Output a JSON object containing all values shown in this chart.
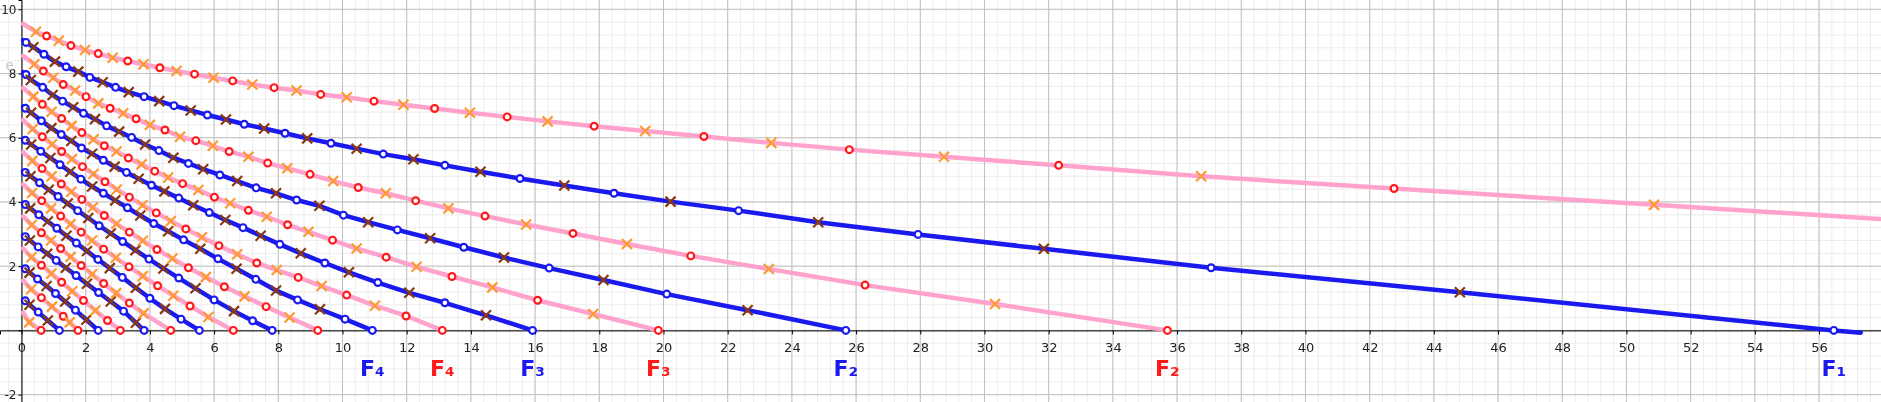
{
  "chart_data": {
    "type": "scatter",
    "xlim": [
      -0.67,
      57.93
    ],
    "ylim": [
      -2.23,
      10.29
    ],
    "xticks": [
      0,
      2,
      4,
      6,
      8,
      10,
      12,
      14,
      16,
      18,
      20,
      22,
      24,
      26,
      28,
      30,
      32,
      34,
      36,
      38,
      40,
      42,
      44,
      46,
      48,
      50,
      52,
      54,
      56
    ],
    "yticks": [
      -2,
      {
        "value": 0,
        "label": null
      },
      2,
      4,
      6,
      8,
      10
    ],
    "grid": true,
    "annotations": [
      "F₄",
      "F₄",
      "F₃",
      "F₃",
      "F₂",
      "F₂",
      "F₁",
      "e"
    ],
    "series": [
      {
        "type": "line",
        "color": "#ffa3cc",
        "x": [
          0.05,
          0.45,
          0.78,
          1.16,
          1.54,
          1.98,
          2.39,
          2.84,
          3.31,
          3.8,
          4.31,
          4.83,
          5.39,
          5.98,
          6.58,
          7.19,
          7.87,
          8.57,
          9.32,
          10.13,
          10.98,
          11.9,
          12.87,
          13.97,
          15.13,
          16.39,
          17.84,
          19.43,
          21.26,
          23.36,
          25.79,
          28.74,
          32.31,
          36.75,
          42.76,
          50.86,
          57.9
        ],
        "values": [
          9.55,
          9.3,
          9.17,
          9.02,
          8.87,
          8.73,
          8.62,
          8.49,
          8.39,
          8.29,
          8.18,
          8.08,
          7.98,
          7.87,
          7.77,
          7.66,
          7.56,
          7.47,
          7.35,
          7.26,
          7.14,
          7.03,
          6.91,
          6.78,
          6.65,
          6.51,
          6.36,
          6.21,
          6.04,
          5.84,
          5.63,
          5.41,
          5.14,
          4.8,
          4.42,
          3.91,
          3.47
        ]
      },
      {
        "type": "line",
        "color": "#1a1aee",
        "x": [
          0.05,
          0.14,
          0.37,
          0.7,
          1.04,
          1.39,
          1.77,
          2.13,
          2.53,
          2.93,
          3.34,
          3.82,
          4.29,
          4.75,
          5.27,
          5.79,
          6.37,
          6.94,
          7.56,
          8.21,
          8.9,
          9.64,
          10.44,
          11.27,
          12.21,
          13.19,
          14.3,
          15.53,
          16.91,
          18.46,
          20.22,
          22.34,
          24.82,
          27.93,
          31.85,
          37.06,
          44.81,
          56.46,
          57.3
        ],
        "values": [
          9.04,
          8.97,
          8.82,
          8.6,
          8.37,
          8.21,
          8.06,
          7.88,
          7.73,
          7.57,
          7.42,
          7.28,
          7.14,
          7.0,
          6.85,
          6.71,
          6.57,
          6.42,
          6.29,
          6.14,
          5.98,
          5.83,
          5.66,
          5.49,
          5.33,
          5.14,
          4.94,
          4.73,
          4.51,
          4.27,
          4.01,
          3.73,
          3.37,
          2.99,
          2.54,
          1.95,
          1.19,
          0,
          -0.07
        ]
      },
      {
        "type": "line",
        "color": "#ffa3cc",
        "x": [
          0.05,
          0.4,
          0.68,
          0.99,
          1.3,
          1.67,
          2.01,
          2.39,
          2.76,
          3.17,
          3.57,
          4.0,
          4.47,
          4.94,
          5.43,
          5.96,
          6.47,
          7.07,
          7.67,
          8.28,
          8.99,
          9.71,
          10.49,
          11.35,
          12.28,
          13.3,
          14.44,
          15.72,
          17.18,
          18.86,
          20.85,
          23.28,
          26.28,
          30.33,
          35.7
        ],
        "values": [
          8.55,
          8.29,
          8.08,
          7.87,
          7.66,
          7.47,
          7.28,
          7.07,
          6.92,
          6.76,
          6.59,
          6.4,
          6.24,
          6.03,
          5.91,
          5.75,
          5.57,
          5.41,
          5.21,
          5.05,
          4.86,
          4.65,
          4.45,
          4.27,
          4.04,
          3.8,
          3.56,
          3.3,
          3.02,
          2.69,
          2.32,
          1.91,
          1.41,
          0.82,
          0
        ]
      },
      {
        "type": "line",
        "color": "#1a1aee",
        "x": [
          0.05,
          0.14,
          0.29,
          0.66,
          0.97,
          1.28,
          1.61,
          1.93,
          2.29,
          2.65,
          3.04,
          3.43,
          3.85,
          4.28,
          4.73,
          5.2,
          5.66,
          6.18,
          6.72,
          7.31,
          7.93,
          8.57,
          9.28,
          10.03,
          10.8,
          11.71,
          12.73,
          13.78,
          15.03,
          16.44,
          18.13,
          20.1,
          22.62,
          25.68
        ],
        "values": [
          8.04,
          7.97,
          7.8,
          7.57,
          7.33,
          7.14,
          6.95,
          6.76,
          6.58,
          6.37,
          6.19,
          6.01,
          5.79,
          5.6,
          5.38,
          5.2,
          5.02,
          4.84,
          4.65,
          4.44,
          4.27,
          4.06,
          3.88,
          3.59,
          3.37,
          3.13,
          2.87,
          2.59,
          2.27,
          1.94,
          1.57,
          1.13,
          0.63,
          0
        ]
      },
      {
        "type": "line",
        "color": "#ffa3cc",
        "x": [
          0.05,
          0.37,
          0.65,
          0.94,
          1.25,
          1.56,
          1.88,
          2.24,
          2.58,
          2.96,
          3.33,
          3.74,
          4.15,
          4.57,
          5.02,
          5.51,
          6.01,
          6.5,
          7.07,
          7.64,
          8.29,
          8.94,
          9.69,
          10.44,
          11.36,
          12.31,
          13.41,
          14.67,
          16.08,
          17.81,
          19.84
        ],
        "values": [
          7.55,
          7.28,
          7.04,
          6.81,
          6.6,
          6.37,
          6.16,
          5.95,
          5.75,
          5.57,
          5.37,
          5.17,
          4.96,
          4.76,
          4.57,
          4.37,
          4.15,
          3.96,
          3.74,
          3.54,
          3.29,
          3.07,
          2.81,
          2.55,
          2.28,
          1.98,
          1.68,
          1.34,
          0.94,
          0.51,
          0
        ]
      },
      {
        "type": "line",
        "color": "#1a1aee",
        "x": [
          0.05,
          0.12,
          0.3,
          0.62,
          0.93,
          1.24,
          1.55,
          1.87,
          2.2,
          2.55,
          2.9,
          3.27,
          3.65,
          4.05,
          4.45,
          4.9,
          5.35,
          5.85,
          6.35,
          6.9,
          7.45,
          8.05,
          8.7,
          9.45,
          10.2,
          11.1,
          12.08,
          13.19,
          14.47,
          15.92
        ],
        "values": [
          6.98,
          6.92,
          6.78,
          6.53,
          6.3,
          6.1,
          5.9,
          5.68,
          5.5,
          5.3,
          5.1,
          4.92,
          4.72,
          4.52,
          4.33,
          4.12,
          3.9,
          3.67,
          3.44,
          3.2,
          2.95,
          2.68,
          2.4,
          2.1,
          1.81,
          1.49,
          1.17,
          0.86,
          0.47,
          0
        ]
      },
      {
        "type": "line",
        "color": "#ffa3cc",
        "x": [
          0.05,
          0.35,
          0.65,
          0.95,
          1.25,
          1.57,
          1.9,
          2.24,
          2.6,
          2.97,
          3.36,
          3.77,
          4.2,
          4.65,
          5.12,
          5.62,
          6.15,
          6.72,
          7.33,
          7.95,
          8.62,
          9.35,
          10.13,
          11.01,
          11.98,
          13.11
        ],
        "values": [
          6.55,
          6.27,
          6.03,
          5.8,
          5.57,
          5.34,
          5.1,
          4.87,
          4.63,
          4.39,
          4.15,
          3.9,
          3.66,
          3.41,
          3.16,
          2.9,
          2.64,
          2.37,
          2.1,
          1.88,
          1.65,
          1.38,
          1.1,
          0.77,
          0.45,
          0
        ]
      },
      {
        "type": "line",
        "color": "#1a1aee",
        "x": [
          0.05,
          0.12,
          0.3,
          0.6,
          0.9,
          1.2,
          1.52,
          1.85,
          2.2,
          2.55,
          2.92,
          3.3,
          3.7,
          4.12,
          4.57,
          5.05,
          5.57,
          6.12,
          6.7,
          7.3,
          7.93,
          8.6,
          9.3,
          10.08,
          10.93
        ],
        "values": [
          5.97,
          5.92,
          5.79,
          5.58,
          5.37,
          5.16,
          4.94,
          4.71,
          4.48,
          4.27,
          4.05,
          3.82,
          3.58,
          3.33,
          3.09,
          2.82,
          2.54,
          2.23,
          1.92,
          1.59,
          1.24,
          0.95,
          0.66,
          0.35,
          0
        ]
      },
      {
        "type": "line",
        "color": "#ffa3cc",
        "x": [
          0.05,
          0.34,
          0.64,
          0.94,
          1.24,
          1.55,
          1.88,
          2.22,
          2.58,
          2.96,
          3.36,
          3.78,
          4.22,
          4.7,
          5.2,
          5.74,
          6.32,
          6.95,
          7.62,
          8.35,
          9.23
        ],
        "values": [
          5.55,
          5.28,
          5.04,
          4.8,
          4.56,
          4.32,
          4.08,
          3.83,
          3.58,
          3.32,
          3.06,
          2.79,
          2.52,
          2.24,
          1.95,
          1.66,
          1.36,
          1.06,
          0.74,
          0.4,
          0
        ]
      },
      {
        "type": "line",
        "color": "#1a1aee",
        "x": [
          0.05,
          0.12,
          0.28,
          0.56,
          0.85,
          1.14,
          1.44,
          1.75,
          2.08,
          2.42,
          2.78,
          3.15,
          3.55,
          3.97,
          4.42,
          4.9,
          5.42,
          6.0,
          6.62,
          7.2,
          7.81
        ],
        "values": [
          4.97,
          4.92,
          4.8,
          4.6,
          4.38,
          4.17,
          3.95,
          3.73,
          3.5,
          3.26,
          3.02,
          2.77,
          2.5,
          2.22,
          1.93,
          1.63,
          1.31,
          0.95,
          0.6,
          0.3,
          0
        ]
      },
      {
        "type": "line",
        "color": "#ffa3cc",
        "x": [
          0.05,
          0.33,
          0.63,
          0.92,
          1.22,
          1.53,
          1.86,
          2.2,
          2.56,
          2.94,
          3.35,
          3.78,
          4.24,
          4.73,
          5.25,
          5.82,
          6.6
        ],
        "values": [
          4.55,
          4.28,
          4.04,
          3.8,
          3.56,
          3.31,
          3.06,
          2.8,
          2.53,
          2.26,
          1.98,
          1.69,
          1.39,
          1.08,
          0.76,
          0.42,
          0
        ]
      },
      {
        "type": "line",
        "color": "#1a1aee",
        "x": [
          0.05,
          0.12,
          0.27,
          0.54,
          0.82,
          1.1,
          1.4,
          1.71,
          2.04,
          2.38,
          2.75,
          3.14,
          3.56,
          4.0,
          4.47,
          4.97,
          5.54
        ],
        "values": [
          3.97,
          3.92,
          3.8,
          3.6,
          3.39,
          3.18,
          2.95,
          2.72,
          2.47,
          2.21,
          1.94,
          1.65,
          1.33,
          1.0,
          0.67,
          0.35,
          0
        ]
      },
      {
        "type": "line",
        "color": "#ffa3cc",
        "x": [
          0.05,
          0.32,
          0.62,
          0.92,
          1.22,
          1.53,
          1.86,
          2.2,
          2.56,
          2.95,
          3.36,
          3.8,
          4.65
        ],
        "values": [
          3.55,
          3.28,
          3.04,
          2.8,
          2.55,
          2.29,
          2.02,
          1.75,
          1.46,
          1.16,
          0.85,
          0.53,
          0
        ]
      },
      {
        "type": "line",
        "color": "#1a1aee",
        "x": [
          0.05,
          0.12,
          0.26,
          0.52,
          0.8,
          1.08,
          1.38,
          1.7,
          2.04,
          2.4,
          2.78,
          3.18,
          3.56,
          3.82
        ],
        "values": [
          2.97,
          2.92,
          2.8,
          2.6,
          2.39,
          2.18,
          1.95,
          1.71,
          1.45,
          1.18,
          0.9,
          0.6,
          0.24,
          0
        ]
      },
      {
        "type": "line",
        "color": "#ffa3cc",
        "x": [
          0.05,
          0.31,
          0.62,
          0.93,
          1.25,
          1.58,
          1.93,
          2.3,
          2.68,
          3.08
        ],
        "values": [
          2.55,
          2.28,
          2.03,
          1.77,
          1.5,
          1.22,
          0.93,
          0.62,
          0.31,
          0
        ]
      },
      {
        "type": "line",
        "color": "#1a1aee",
        "x": [
          0.05,
          0.12,
          0.25,
          0.5,
          0.78,
          1.06,
          1.36,
          1.68,
          2.02,
          2.39
        ],
        "values": [
          1.97,
          1.92,
          1.8,
          1.6,
          1.38,
          1.15,
          0.9,
          0.63,
          0.33,
          0
        ]
      },
      {
        "type": "line",
        "color": "#ffa3cc",
        "x": [
          0.05,
          0.3,
          0.62,
          0.95,
          1.3,
          1.5,
          1.76
        ],
        "values": [
          1.55,
          1.28,
          1.02,
          0.74,
          0.44,
          0.25,
          0
        ]
      },
      {
        "type": "line",
        "color": "#1a1aee",
        "x": [
          0.05,
          0.12,
          0.25,
          0.52,
          0.82,
          1.18
        ],
        "values": [
          0.97,
          0.92,
          0.8,
          0.57,
          0.31,
          0
        ]
      },
      {
        "type": "line",
        "color": "#ffa3cc",
        "x": [
          0.05,
          0.24,
          0.61
        ],
        "values": [
          0.55,
          0.25,
          0
        ]
      },
      {
        "marker": "circle",
        "color": "#1a1aee",
        "x": [
          0.14,
          0.7,
          1.39,
          2.13,
          2.93,
          3.82,
          4.75,
          5.79,
          6.94,
          8.21,
          9.64,
          11.27,
          13.19,
          15.53,
          18.46,
          22.34,
          27.93,
          37.06,
          56.46,
          0.14,
          0.66,
          1.28,
          1.93,
          2.65,
          3.43,
          4.28,
          5.2,
          6.18,
          7.31,
          8.57,
          10.03,
          11.71,
          13.78,
          16.44,
          20.1,
          25.68,
          0.12,
          0.62,
          1.24,
          1.87,
          2.55,
          3.27,
          4.05,
          4.9,
          5.85,
          6.9,
          8.05,
          9.45,
          11.1,
          13.19,
          15.92,
          0.12,
          0.6,
          1.2,
          1.85,
          2.55,
          3.3,
          4.12,
          5.05,
          6.12,
          7.3,
          8.6,
          10.08,
          10.93,
          0.12,
          0.56,
          1.14,
          1.75,
          2.42,
          3.15,
          3.97,
          4.9,
          6.0,
          7.2,
          7.81,
          0.12,
          0.54,
          1.1,
          1.71,
          2.38,
          3.14,
          4.0,
          4.97,
          5.54,
          0.12,
          0.52,
          1.08,
          1.7,
          2.4,
          3.18,
          3.82,
          0.12,
          0.5,
          1.06,
          1.68,
          2.39,
          0.12,
          0.52,
          1.18
        ],
        "values": [
          8.97,
          8.6,
          8.21,
          7.88,
          7.57,
          7.28,
          7.0,
          6.71,
          6.42,
          6.14,
          5.83,
          5.49,
          5.14,
          4.73,
          4.27,
          3.73,
          2.99,
          1.95,
          0,
          7.97,
          7.57,
          7.14,
          6.76,
          6.37,
          6.01,
          5.6,
          5.2,
          4.84,
          4.44,
          4.06,
          3.59,
          3.13,
          2.59,
          1.94,
          1.13,
          0,
          6.92,
          6.53,
          6.1,
          5.68,
          5.3,
          4.92,
          4.52,
          4.12,
          3.67,
          3.2,
          2.68,
          2.1,
          1.49,
          0.86,
          0,
          5.92,
          5.58,
          5.16,
          4.71,
          4.27,
          3.82,
          3.33,
          2.82,
          2.23,
          1.59,
          0.95,
          0.35,
          0,
          4.92,
          4.6,
          4.17,
          3.73,
          3.26,
          2.77,
          2.22,
          1.63,
          0.95,
          0.3,
          0,
          3.92,
          3.6,
          3.18,
          2.72,
          2.21,
          1.65,
          1.0,
          0.35,
          0,
          2.92,
          2.6,
          2.18,
          1.71,
          1.18,
          0.6,
          0,
          1.92,
          1.6,
          1.15,
          0.63,
          0,
          0.92,
          0.57,
          0
        ]
      },
      {
        "marker": "cross",
        "color": "#8b3a0f",
        "x": [
          0.37,
          1.04,
          1.77,
          2.53,
          3.34,
          4.29,
          5.27,
          6.37,
          7.56,
          8.9,
          10.44,
          12.21,
          14.3,
          16.91,
          20.22,
          24.82,
          31.85,
          44.81,
          0.29,
          0.97,
          1.61,
          2.29,
          3.04,
          3.85,
          4.73,
          5.66,
          6.72,
          7.93,
          9.28,
          10.8,
          12.73,
          15.03,
          18.13,
          22.62,
          0.3,
          0.93,
          1.55,
          2.2,
          2.9,
          3.65,
          4.45,
          5.35,
          6.35,
          7.45,
          8.7,
          10.2,
          12.08,
          14.47,
          0.3,
          0.9,
          1.52,
          2.2,
          2.92,
          3.7,
          4.57,
          5.57,
          6.7,
          7.93,
          9.3,
          0.28,
          0.85,
          1.44,
          2.08,
          2.78,
          3.55,
          4.42,
          5.42,
          6.62,
          0.27,
          0.82,
          1.4,
          2.04,
          2.75,
          3.56,
          4.47,
          0.26,
          0.8,
          1.38,
          2.04,
          2.78,
          3.56,
          0.25,
          0.78,
          1.36,
          2.02,
          0.25,
          0.82
        ],
        "values": [
          8.82,
          8.37,
          8.06,
          7.73,
          7.42,
          7.14,
          6.85,
          6.57,
          6.29,
          5.98,
          5.66,
          5.33,
          4.94,
          4.51,
          4.01,
          3.37,
          2.54,
          1.19,
          7.8,
          7.33,
          6.95,
          6.58,
          6.19,
          5.79,
          5.38,
          5.02,
          4.65,
          4.27,
          3.88,
          3.37,
          2.87,
          2.27,
          1.57,
          0.63,
          6.78,
          6.3,
          5.9,
          5.5,
          5.1,
          4.72,
          4.33,
          3.9,
          3.44,
          2.95,
          2.4,
          1.81,
          1.17,
          0.47,
          5.79,
          5.37,
          4.94,
          4.48,
          4.05,
          3.58,
          3.09,
          2.54,
          1.92,
          1.24,
          0.66,
          4.8,
          4.38,
          3.95,
          3.5,
          3.02,
          2.5,
          1.93,
          1.31,
          0.6,
          3.8,
          3.39,
          2.95,
          2.47,
          1.94,
          1.33,
          0.67,
          2.8,
          2.39,
          1.95,
          1.45,
          0.9,
          0.24,
          1.8,
          1.38,
          0.9,
          0.33,
          0.8,
          0.31
        ]
      },
      {
        "marker": "circle",
        "color": "#ff1a1a",
        "x": [
          0.78,
          1.54,
          2.39,
          3.31,
          4.31,
          5.39,
          6.58,
          7.87,
          9.32,
          10.98,
          12.87,
          15.13,
          17.84,
          21.26,
          25.79,
          32.31,
          42.76,
          0.68,
          1.3,
          2.01,
          2.76,
          3.57,
          4.47,
          5.43,
          6.47,
          7.67,
          8.99,
          10.49,
          12.28,
          14.44,
          17.18,
          20.85,
          26.28,
          35.7,
          0.65,
          1.25,
          1.88,
          2.58,
          3.33,
          4.15,
          5.02,
          6.01,
          7.07,
          8.29,
          9.69,
          11.36,
          13.41,
          16.08,
          19.84,
          0.65,
          1.25,
          1.9,
          2.6,
          3.36,
          4.2,
          5.12,
          6.15,
          7.33,
          8.62,
          10.13,
          11.98,
          13.11,
          0.64,
          1.24,
          1.88,
          2.58,
          3.36,
          4.22,
          5.2,
          6.32,
          7.62,
          9.23,
          0.63,
          1.22,
          1.86,
          2.56,
          3.35,
          4.24,
          5.25,
          6.6,
          0.62,
          1.22,
          1.86,
          2.56,
          3.36,
          4.65,
          0.62,
          1.25,
          1.93,
          2.68,
          3.08,
          0.62,
          1.3,
          1.76,
          0.61
        ],
        "values": [
          9.17,
          8.87,
          8.62,
          8.39,
          8.18,
          7.98,
          7.77,
          7.56,
          7.35,
          7.14,
          6.91,
          6.65,
          6.36,
          6.04,
          5.63,
          5.14,
          4.42,
          8.08,
          7.66,
          7.28,
          6.92,
          6.59,
          6.24,
          5.91,
          5.57,
          5.21,
          4.86,
          4.45,
          4.04,
          3.56,
          3.02,
          2.32,
          1.41,
          0,
          7.04,
          6.6,
          6.16,
          5.75,
          5.37,
          4.96,
          4.57,
          4.15,
          3.74,
          3.29,
          2.81,
          2.28,
          1.68,
          0.94,
          0,
          6.03,
          5.57,
          5.1,
          4.63,
          4.15,
          3.66,
          3.16,
          2.64,
          2.1,
          1.65,
          1.1,
          0.45,
          0,
          5.04,
          4.56,
          4.08,
          3.58,
          3.06,
          2.52,
          1.95,
          1.36,
          0.74,
          0,
          4.04,
          3.56,
          3.06,
          2.53,
          1.98,
          1.39,
          0.76,
          0,
          3.04,
          2.55,
          2.02,
          1.46,
          0.85,
          0,
          2.03,
          1.5,
          0.93,
          0.31,
          0,
          1.02,
          0.44,
          0,
          0
        ]
      },
      {
        "marker": "cross",
        "color": "#ff9933",
        "x": [
          0.45,
          1.16,
          1.98,
          2.84,
          3.8,
          4.83,
          5.98,
          7.19,
          8.57,
          10.13,
          11.9,
          13.97,
          16.39,
          19.43,
          23.36,
          28.74,
          36.75,
          50.86,
          0.4,
          0.99,
          1.67,
          2.39,
          3.17,
          4.0,
          4.94,
          5.96,
          7.07,
          8.28,
          9.71,
          11.35,
          13.3,
          15.72,
          18.86,
          23.28,
          30.33,
          0.37,
          0.94,
          1.56,
          2.24,
          2.96,
          3.74,
          4.57,
          5.51,
          6.5,
          7.64,
          8.94,
          10.44,
          12.31,
          14.67,
          17.81,
          0.35,
          0.95,
          1.57,
          2.24,
          2.97,
          3.77,
          4.65,
          5.62,
          6.72,
          7.95,
          9.35,
          11.01,
          0.34,
          0.94,
          1.55,
          2.22,
          2.96,
          3.78,
          4.7,
          5.74,
          6.95,
          8.35,
          0.33,
          0.92,
          1.53,
          2.2,
          2.94,
          3.78,
          4.73,
          5.82,
          0.32,
          0.92,
          1.53,
          2.2,
          2.95,
          3.8,
          0.31,
          0.93,
          1.58,
          2.3,
          0.3,
          0.95,
          1.5,
          0.24
        ],
        "values": [
          9.3,
          9.02,
          8.73,
          8.49,
          8.29,
          8.08,
          7.87,
          7.66,
          7.47,
          7.26,
          7.03,
          6.78,
          6.51,
          6.21,
          5.84,
          5.41,
          4.8,
          3.91,
          8.29,
          7.87,
          7.47,
          7.07,
          6.76,
          6.4,
          6.03,
          5.75,
          5.41,
          5.05,
          4.65,
          4.27,
          3.8,
          3.3,
          2.69,
          1.91,
          0.82,
          7.28,
          6.81,
          6.37,
          5.95,
          5.57,
          5.17,
          4.76,
          4.37,
          3.96,
          3.54,
          3.07,
          2.55,
          1.98,
          1.34,
          0.51,
          6.27,
          5.8,
          5.34,
          4.87,
          4.39,
          3.9,
          3.41,
          2.9,
          2.37,
          1.88,
          1.38,
          0.77,
          5.28,
          4.8,
          4.32,
          3.83,
          3.32,
          2.79,
          2.24,
          1.66,
          1.06,
          0.4,
          4.28,
          3.8,
          3.31,
          2.8,
          2.26,
          1.69,
          1.08,
          0.42,
          3.28,
          2.8,
          2.29,
          1.75,
          1.16,
          0.53,
          2.28,
          1.77,
          1.22,
          0.62,
          1.28,
          0.74,
          0.25,
          0.25
        ]
      }
    ]
  }
}
